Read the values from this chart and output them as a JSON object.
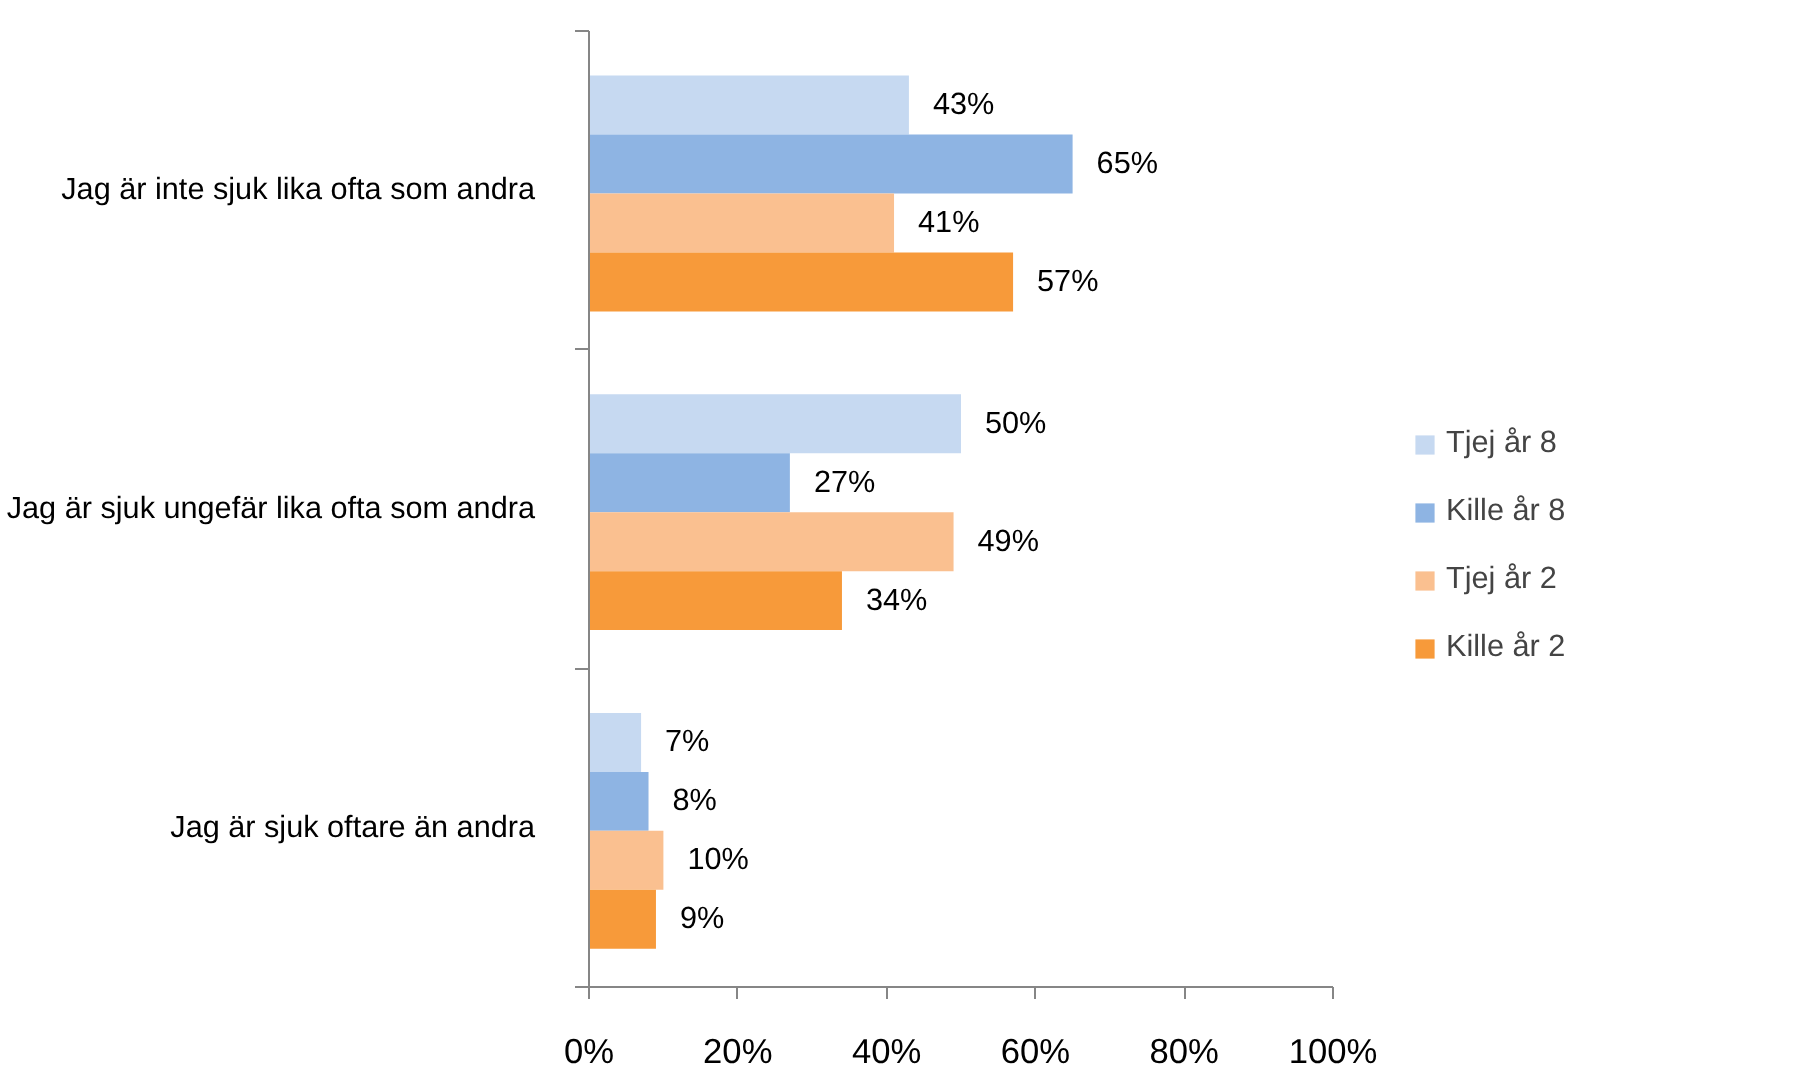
{
  "chart_data": {
    "type": "bar",
    "orientation": "horizontal",
    "categories": [
      "Jag är inte sjuk lika ofta som andra",
      "Jag är sjuk ungefär lika ofta som andra",
      "Jag är sjuk oftare än andra"
    ],
    "series": [
      {
        "name": "Tjej år 8",
        "color": "#c6d9f1",
        "values": [
          43,
          50,
          7
        ],
        "value_labels": [
          "43%",
          "50%",
          "7%"
        ]
      },
      {
        "name": "Kille år 8",
        "color": "#8eb4e3",
        "values": [
          65,
          27,
          8
        ],
        "value_labels": [
          "65%",
          "27%",
          "8%"
        ]
      },
      {
        "name": "Tjej år 2",
        "color": "#fac090",
        "values": [
          41,
          49,
          10
        ],
        "value_labels": [
          "41%",
          "49%",
          "10%"
        ]
      },
      {
        "name": "Kille år 2",
        "color": "#f79a3a",
        "values": [
          57,
          34,
          9
        ],
        "value_labels": [
          "57%",
          "34%",
          "9%"
        ]
      }
    ],
    "xlim": [
      0,
      100
    ],
    "xticks": [
      {
        "value": 0,
        "label": "0%"
      },
      {
        "value": 20,
        "label": "20%"
      },
      {
        "value": 40,
        "label": "40%"
      },
      {
        "value": 60,
        "label": "60%"
      },
      {
        "value": 80,
        "label": "80%"
      },
      {
        "value": 100,
        "label": "100%"
      }
    ],
    "grid": false,
    "legend": "right"
  }
}
